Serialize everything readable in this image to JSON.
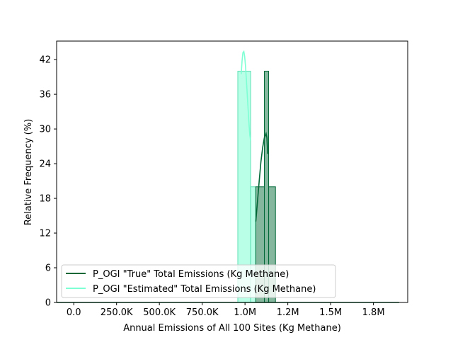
{
  "chart_data": {
    "type": "bar",
    "xlabel": "Annual Emissions of All 100 Sites (Kg Methane)",
    "ylabel": "Relative Frequency (%)",
    "xlim": [
      -100000,
      1950000
    ],
    "ylim": [
      0,
      45.2
    ],
    "x_ticks": [
      {
        "value": 0,
        "label": "0.0"
      },
      {
        "value": 250000,
        "label": "250.0K"
      },
      {
        "value": 500000,
        "label": "500.0K"
      },
      {
        "value": 750000,
        "label": "750.0K"
      },
      {
        "value": 1000000,
        "label": "1.0M"
      },
      {
        "value": 1250000,
        "label": "1.2M"
      },
      {
        "value": 1500000,
        "label": "1.5M"
      },
      {
        "value": 1750000,
        "label": "1.8M"
      }
    ],
    "y_ticks": [
      {
        "value": 0,
        "label": "0"
      },
      {
        "value": 6,
        "label": "6"
      },
      {
        "value": 12,
        "label": "12"
      },
      {
        "value": 18,
        "label": "18"
      },
      {
        "value": 24,
        "label": "24"
      },
      {
        "value": 30,
        "label": "30"
      },
      {
        "value": 36,
        "label": "36"
      },
      {
        "value": 42,
        "label": "42"
      }
    ],
    "grid": false,
    "legend_position": "lower-left",
    "series": [
      {
        "name": "P_OGI \"Estimated\" Total Emissions (Kg Methane)",
        "color": "#7fffd4",
        "edge_color": "#5fe0b4",
        "bins": [
          {
            "x0": 958000,
            "x1": 1033000,
            "value": 40
          },
          {
            "x0": 1033000,
            "x1": 1063000,
            "value": 20
          }
        ],
        "kde": {
          "x": [
            978000,
            983000,
            988000,
            993000,
            998000,
            1003000,
            1008000,
            1013000,
            1018000,
            1023000,
            1028000,
            1033000
          ],
          "y": [
            39.5,
            41.8,
            43.2,
            43.4,
            42.5,
            40.8,
            38.5,
            36.0,
            33.5,
            31.0,
            29.0,
            28.0
          ]
        }
      },
      {
        "name": "P_OGI \"True\" Total Emissions (Kg Methane)",
        "color": "#006837",
        "edge_color": "#006837",
        "bins": [
          {
            "x0": 1063000,
            "x1": 1113000,
            "value": 20
          },
          {
            "x0": 1113000,
            "x1": 1138000,
            "value": 40
          },
          {
            "x0": 1138000,
            "x1": 1178000,
            "value": 20
          }
        ],
        "kde": {
          "x": [
            1063000,
            1073000,
            1083000,
            1093000,
            1103000,
            1113000,
            1123000,
            1128000,
            1133000
          ],
          "y": [
            14.0,
            17.5,
            21.0,
            24.3,
            26.8,
            28.5,
            29.2,
            28.5,
            25.7
          ]
        }
      }
    ],
    "tail_line": {
      "x0": -100000,
      "x1": 1900000,
      "value": 0
    }
  }
}
